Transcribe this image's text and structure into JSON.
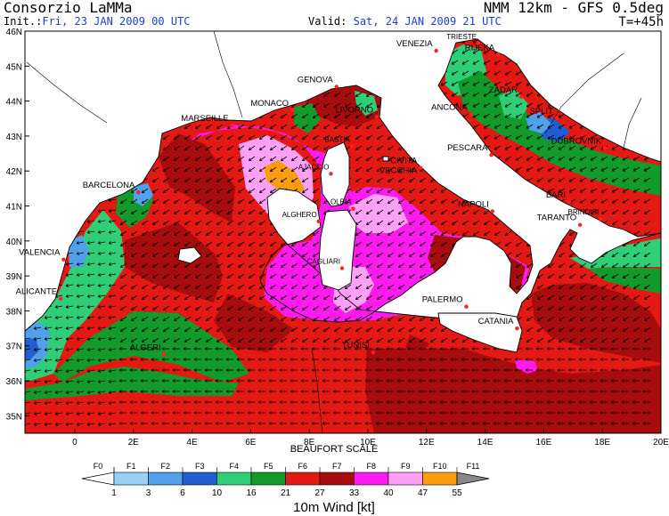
{
  "header": {
    "title": "Consorzio LaMMa",
    "model": "NMM 12km - GFS 0.5deg",
    "init_label": "Init.:",
    "init_value": "Fri, 23 JAN 2009  00 UTC",
    "valid_label": "Valid:",
    "valid_value": "Sat, 24 JAN 2009  21 UTC",
    "timestep": "T=+45h"
  },
  "map": {
    "lat_labels": [
      "46N",
      "45N",
      "44N",
      "43N",
      "42N",
      "41N",
      "40N",
      "39N",
      "38N",
      "37N",
      "36N",
      "35N"
    ],
    "lon_labels": [
      "0",
      "2E",
      "4E",
      "6E",
      "8E",
      "10E",
      "12E",
      "14E",
      "16E",
      "18E",
      "20E"
    ],
    "cities": [
      {
        "name": "TRIESTE",
        "lon": 13.77,
        "lat": 45.65,
        "small": true
      },
      {
        "name": "VENEZIA",
        "lon": 12.33,
        "lat": 45.44
      },
      {
        "name": "RIJEKA",
        "lon": 14.44,
        "lat": 45.33
      },
      {
        "name": "GENOVA",
        "lon": 8.93,
        "lat": 44.41
      },
      {
        "name": "MONACO",
        "lon": 7.42,
        "lat": 43.74
      },
      {
        "name": "ZADAR",
        "lon": 15.23,
        "lat": 44.12
      },
      {
        "name": "MARSEILLE",
        "lon": 5.37,
        "lat": 43.3
      },
      {
        "name": "LIVORNO",
        "lon": 10.31,
        "lat": 43.55
      },
      {
        "name": "ANCONA",
        "lon": 13.52,
        "lat": 43.62
      },
      {
        "name": "SPLIT",
        "lon": 16.44,
        "lat": 43.51
      },
      {
        "name": "DUBROVNIK",
        "lon": 18.09,
        "lat": 42.65
      },
      {
        "name": "BASTIA",
        "lon": 9.45,
        "lat": 42.7,
        "small": true
      },
      {
        "name": "PESCARA",
        "lon": 14.21,
        "lat": 42.46
      },
      {
        "name": "AJACCIO",
        "lon": 8.74,
        "lat": 41.92,
        "small": true
      },
      {
        "name": "CIVITA",
        "lon": 11.8,
        "lat": 42.09
      },
      {
        "name": "VECCHIA",
        "lon": 11.8,
        "lat": 42.09
      },
      {
        "name": "BARCELONA",
        "lon": 2.17,
        "lat": 41.39
      },
      {
        "name": "NAPOLI",
        "lon": 14.25,
        "lat": 40.85
      },
      {
        "name": "BARI",
        "lon": 16.87,
        "lat": 41.12
      },
      {
        "name": "OLBIA",
        "lon": 9.5,
        "lat": 40.92,
        "small": true
      },
      {
        "name": "BRINDISI",
        "lon": 17.94,
        "lat": 40.63,
        "small": true
      },
      {
        "name": "ALGHERO",
        "lon": 8.32,
        "lat": 40.56,
        "small": true
      },
      {
        "name": "TARANTO",
        "lon": 17.24,
        "lat": 40.46
      },
      {
        "name": "VALENCIA",
        "lon": -0.38,
        "lat": 39.47
      },
      {
        "name": "CAGLIARI",
        "lon": 9.12,
        "lat": 39.22,
        "small": true
      },
      {
        "name": "ALICANTE",
        "lon": -0.48,
        "lat": 38.35
      },
      {
        "name": "PALERMO",
        "lon": 13.36,
        "lat": 38.12
      },
      {
        "name": "CATANIA",
        "lon": 15.09,
        "lat": 37.5
      },
      {
        "name": "ALGERI",
        "lon": 3.06,
        "lat": 36.75
      },
      {
        "name": "TUNISI",
        "lon": 10.18,
        "lat": 36.81
      }
    ]
  },
  "legend": {
    "scale_title": "BEAUFORT SCALE",
    "force_labels": [
      "F0",
      "F1",
      "F2",
      "F3",
      "F4",
      "F5",
      "F6",
      "F7",
      "F8",
      "F9",
      "F10",
      "F11"
    ],
    "speed_labels": [
      "1",
      "3",
      "6",
      "10",
      "16",
      "21",
      "27",
      "33",
      "40",
      "47",
      "55"
    ],
    "colors": [
      "#ffffff",
      "#9ad0f5",
      "#50a0eb",
      "#1f5fd2",
      "#2ecf77",
      "#129a2a",
      "#e51913",
      "#a80c0c",
      "#ff1bf0",
      "#ffa0f8",
      "#ff9d0c",
      "#888888"
    ],
    "unit_label": "10m Wind [kt]"
  }
}
